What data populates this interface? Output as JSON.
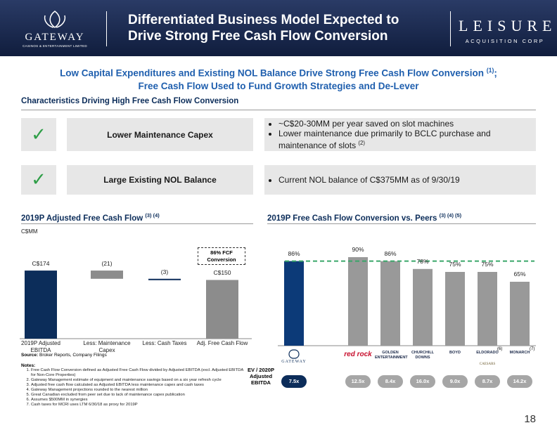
{
  "header": {
    "logo_name": "GATEWAY",
    "logo_tagline": "CASINOS & ENTERTAINMENT LIMITED",
    "title_lines": [
      "Differentiated Business Model Expected to",
      "Drive Strong Free Cash Flow Conversion"
    ],
    "partner_name": "LEISURE",
    "partner_tagline": "ACQUISITION CORP"
  },
  "subtitle": {
    "lines": [
      "Low Capital Expenditures and Existing NOL Balance Drive Strong Free Cash Flow Conversion",
      "Free Cash Flow Used to Fund Growth Strategies and De-Lever"
    ],
    "footnote": "(1)",
    "punctuation": ";"
  },
  "characteristics": {
    "title": "Characteristics Driving High Free Cash Flow Conversion",
    "rows": [
      {
        "label": "Lower Maintenance Capex",
        "bullets": [
          {
            "text": "~C$20-30MM per year saved on slot machines"
          },
          {
            "text": "Lower maintenance due primarily to BCLC purchase and maintenance of slots",
            "footnote": "(2)"
          }
        ]
      },
      {
        "label": "Large Existing NOL Balance",
        "bullets": [
          {
            "text": "Current NOL balance of C$375MM as of 9/30/19"
          }
        ]
      }
    ]
  },
  "chart_data": [
    {
      "type": "waterfall",
      "title": "2019P Adjusted Free Cash Flow",
      "title_footnote": "(3) (4)",
      "unit_label": "C$MM",
      "categories": [
        "2019P Adjusted EBITDA",
        "Less: Maintenance Capex",
        "Less: Cash Taxes",
        "Adj. Free Cash Flow"
      ],
      "values": [
        174,
        -21,
        -3,
        150
      ],
      "value_labels": [
        "C$174",
        "(21)",
        "(3)",
        "C$150"
      ],
      "colors": [
        "#0c2d5a",
        "#8c8c8c",
        "#0c2d5a",
        "#8c8c8c"
      ],
      "annotation": "86% FCF Conversion"
    },
    {
      "type": "bar",
      "title": "2019P Free Cash Flow Conversion vs. Peers",
      "title_footnote": "(3) (4) (5)",
      "categories": [
        "GATEWAY",
        "red rock",
        "GOLDEN ENTERTAINMENT",
        "CHURCHILL DOWNS",
        "BOYD",
        "ELDORADO",
        "MONARCH"
      ],
      "category_notes": [
        null,
        null,
        null,
        null,
        null,
        "(6)",
        "(7)"
      ],
      "category_sublabels": [
        null,
        null,
        null,
        null,
        null,
        "CAESARS",
        null
      ],
      "values": [
        86,
        90,
        86,
        78,
        75,
        75,
        65
      ],
      "value_labels": [
        "86%",
        "90%",
        "86%",
        "78%",
        "75%",
        "75%",
        "65%"
      ],
      "colors": [
        "#0c3a78",
        "#999999",
        "#999999",
        "#999999",
        "#999999",
        "#999999",
        "#999999"
      ],
      "reference_line": {
        "value": 86,
        "color": "#3aa66a"
      },
      "row_label": "EV / 2020P Adjusted EBITDA",
      "row_values": [
        "7.5x",
        "12.5x",
        "8.4x",
        "16.0x",
        "9.0x",
        "8.7x",
        "14.2x"
      ]
    }
  ],
  "source": {
    "label": "Source:",
    "text": "Broker Reports, Company Filings"
  },
  "notes": {
    "title": "Notes:",
    "items": [
      "Free Cash Flow Conversion defined as Adjusted Free Cash Flow divided by Adjusted EBITDA (excl. Adjusted EBITDA for Non-Core Properties)",
      "Gateway Management estimate of equipment and maintenance savings based on a six year refresh cycle",
      "Adjusted free cash flow calculated as Adjusted EBITDA less maintenance capex and cash taxes",
      "Gateway Management projections rounded to the nearest million",
      "Great Canadian excluded from peer set due to lack of maintenance capex publication",
      "Assumes $500MM in synergies",
      "Cash taxes for MCRI uses LTM 6/30/18 as proxy for 2019P"
    ]
  },
  "page_number": "18"
}
